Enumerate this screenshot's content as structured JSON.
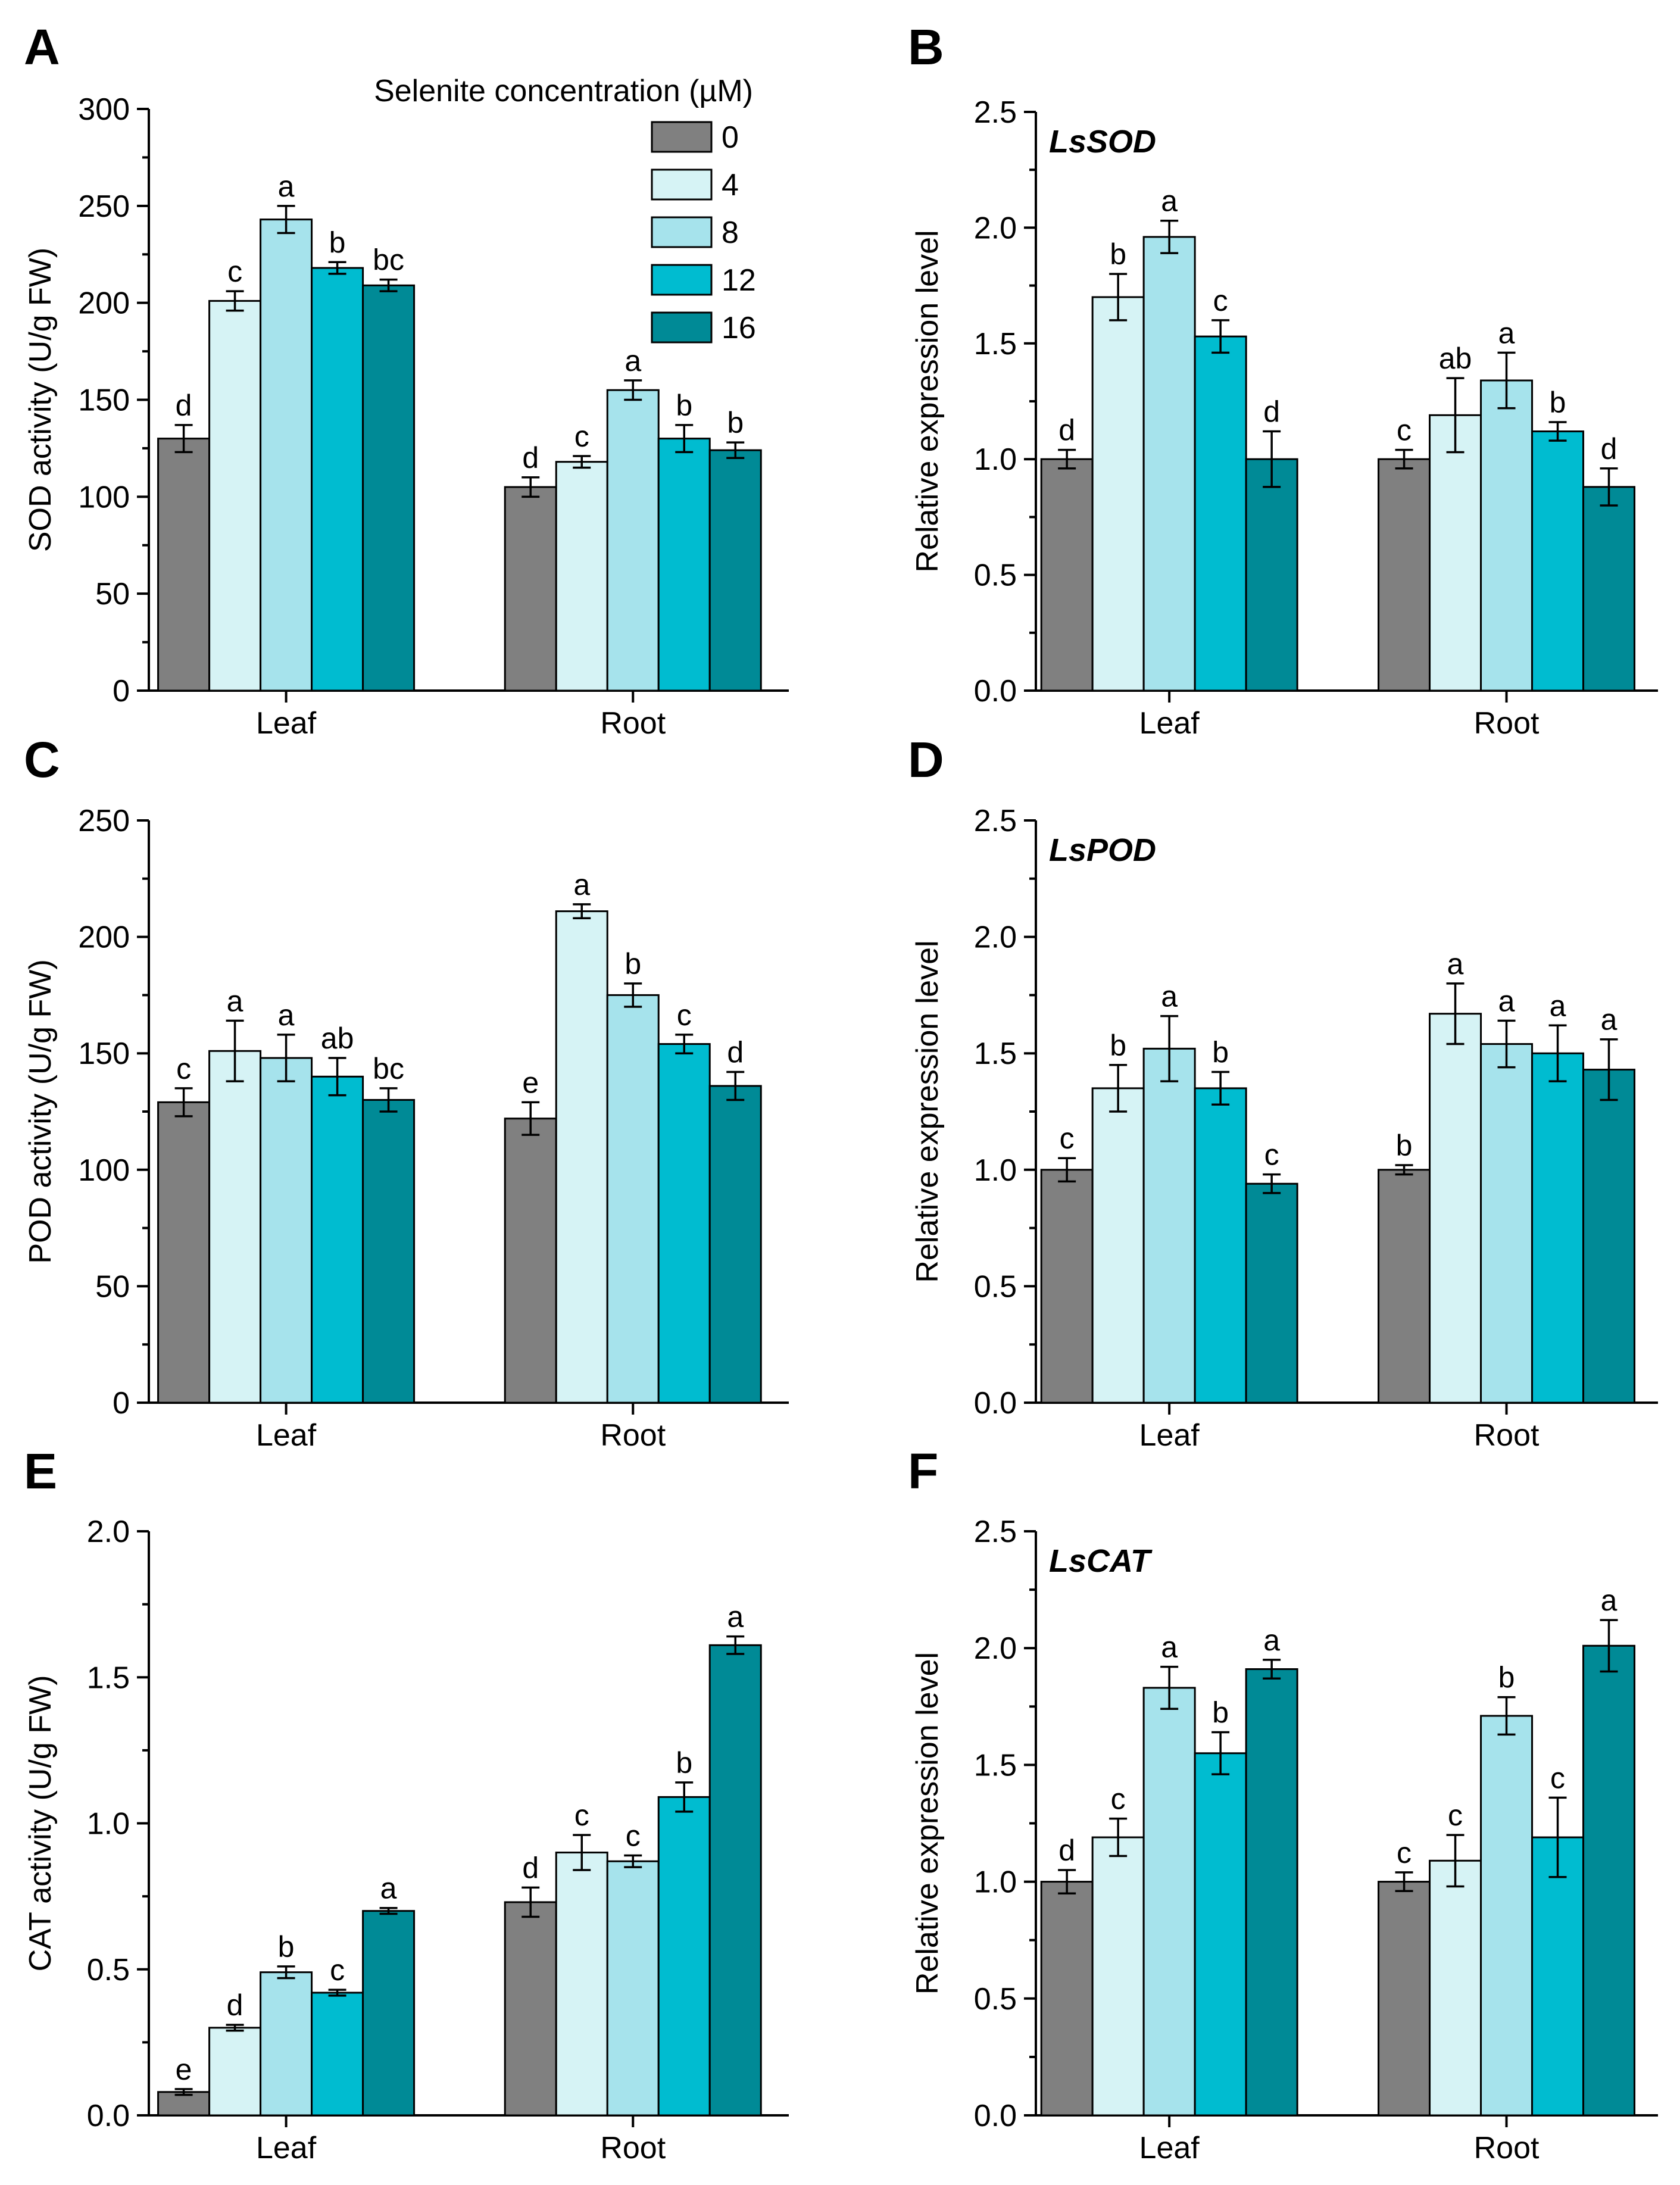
{
  "colors": [
    "#808080",
    "#d6f3f5",
    "#a6e3ec",
    "#00bcd0",
    "#008a96"
  ],
  "legend": {
    "title": "Selenite concentration (µM)",
    "items": [
      "0",
      "4",
      "8",
      "12",
      "16"
    ]
  },
  "chart_data": [
    {
      "panel": "A",
      "type": "bar",
      "ylabel": "SOD activity (U/g FW)",
      "gene": "",
      "categories": [
        "Leaf",
        "Root"
      ],
      "ylim": [
        0,
        300
      ],
      "ytick_step": 50,
      "ytick_decimals": 0,
      "yticks": [
        "0",
        "50",
        "100",
        "150",
        "200",
        "250",
        "300"
      ],
      "series": [
        {
          "name": "0",
          "values": [
            130,
            105
          ],
          "errors": [
            7,
            5
          ],
          "letters": [
            "d",
            "d"
          ]
        },
        {
          "name": "4",
          "values": [
            201,
            118
          ],
          "errors": [
            5,
            3
          ],
          "letters": [
            "c",
            "c"
          ]
        },
        {
          "name": "8",
          "values": [
            243,
            155
          ],
          "errors": [
            7,
            5
          ],
          "letters": [
            "a",
            "a"
          ]
        },
        {
          "name": "12",
          "values": [
            218,
            130
          ],
          "errors": [
            3,
            7
          ],
          "letters": [
            "b",
            "b"
          ]
        },
        {
          "name": "16",
          "values": [
            209,
            124
          ],
          "errors": [
            3,
            4
          ],
          "letters": [
            "bc",
            "b"
          ]
        }
      ]
    },
    {
      "panel": "B",
      "type": "bar",
      "ylabel": "Relative expression level",
      "gene": "LsSOD",
      "categories": [
        "Leaf",
        "Root"
      ],
      "ylim": [
        0,
        2.5
      ],
      "ytick_step": 0.5,
      "ytick_decimals": 1,
      "yticks": [
        "0.0",
        "0.5",
        "1.0",
        "1.5",
        "2.0",
        "2.5"
      ],
      "series": [
        {
          "name": "0",
          "values": [
            1.0,
            1.0
          ],
          "errors": [
            0.04,
            0.04
          ],
          "letters": [
            "d",
            "c"
          ]
        },
        {
          "name": "4",
          "values": [
            1.7,
            1.19
          ],
          "errors": [
            0.1,
            0.16
          ],
          "letters": [
            "b",
            "ab"
          ]
        },
        {
          "name": "8",
          "values": [
            1.96,
            1.34
          ],
          "errors": [
            0.07,
            0.12
          ],
          "letters": [
            "a",
            "a"
          ]
        },
        {
          "name": "12",
          "values": [
            1.53,
            1.12
          ],
          "errors": [
            0.07,
            0.04
          ],
          "letters": [
            "c",
            "b"
          ]
        },
        {
          "name": "16",
          "values": [
            1.0,
            0.88
          ],
          "errors": [
            0.12,
            0.08
          ],
          "letters": [
            "d",
            "d"
          ]
        }
      ]
    },
    {
      "panel": "C",
      "type": "bar",
      "ylabel": "POD activity (U/g FW)",
      "gene": "",
      "categories": [
        "Leaf",
        "Root"
      ],
      "ylim": [
        0,
        250
      ],
      "ytick_step": 50,
      "ytick_decimals": 0,
      "yticks": [
        "0",
        "50",
        "100",
        "150",
        "200",
        "250"
      ],
      "series": [
        {
          "name": "0",
          "values": [
            129,
            122
          ],
          "errors": [
            6,
            7
          ],
          "letters": [
            "c",
            "e"
          ]
        },
        {
          "name": "4",
          "values": [
            151,
            211
          ],
          "errors": [
            13,
            3
          ],
          "letters": [
            "a",
            "a"
          ]
        },
        {
          "name": "8",
          "values": [
            148,
            175
          ],
          "errors": [
            10,
            5
          ],
          "letters": [
            "a",
            "b"
          ]
        },
        {
          "name": "12",
          "values": [
            140,
            154
          ],
          "errors": [
            8,
            4
          ],
          "letters": [
            "ab",
            "c"
          ]
        },
        {
          "name": "16",
          "values": [
            130,
            136
          ],
          "errors": [
            5,
            6
          ],
          "letters": [
            "bc",
            "d"
          ]
        }
      ]
    },
    {
      "panel": "D",
      "type": "bar",
      "ylabel": "Relative expression level",
      "gene": "LsPOD",
      "categories": [
        "Leaf",
        "Root"
      ],
      "ylim": [
        0,
        2.5
      ],
      "ytick_step": 0.5,
      "ytick_decimals": 1,
      "yticks": [
        "0.0",
        "0.5",
        "1.0",
        "1.5",
        "2.0",
        "2.5"
      ],
      "series": [
        {
          "name": "0",
          "values": [
            1.0,
            1.0
          ],
          "errors": [
            0.05,
            0.02
          ],
          "letters": [
            "c",
            "b"
          ]
        },
        {
          "name": "4",
          "values": [
            1.35,
            1.67
          ],
          "errors": [
            0.1,
            0.13
          ],
          "letters": [
            "b",
            "a"
          ]
        },
        {
          "name": "8",
          "values": [
            1.52,
            1.54
          ],
          "errors": [
            0.14,
            0.1
          ],
          "letters": [
            "a",
            "a"
          ]
        },
        {
          "name": "12",
          "values": [
            1.35,
            1.5
          ],
          "errors": [
            0.07,
            0.12
          ],
          "letters": [
            "b",
            "a"
          ]
        },
        {
          "name": "16",
          "values": [
            0.94,
            1.43
          ],
          "errors": [
            0.04,
            0.13
          ],
          "letters": [
            "c",
            "a"
          ]
        }
      ]
    },
    {
      "panel": "E",
      "type": "bar",
      "ylabel": "CAT activity (U/g FW)",
      "gene": "",
      "categories": [
        "Leaf",
        "Root"
      ],
      "ylim": [
        0,
        2.0
      ],
      "ytick_step": 0.5,
      "ytick_decimals": 1,
      "yticks": [
        "0.0",
        "0.5",
        "1.0",
        "1.5",
        "2.0"
      ],
      "series": [
        {
          "name": "0",
          "values": [
            0.08,
            0.73
          ],
          "errors": [
            0.01,
            0.05
          ],
          "letters": [
            "e",
            "d"
          ]
        },
        {
          "name": "4",
          "values": [
            0.3,
            0.9
          ],
          "errors": [
            0.01,
            0.06
          ],
          "letters": [
            "d",
            "c"
          ]
        },
        {
          "name": "8",
          "values": [
            0.49,
            0.87
          ],
          "errors": [
            0.02,
            0.02
          ],
          "letters": [
            "b",
            "c"
          ]
        },
        {
          "name": "12",
          "values": [
            0.42,
            1.09
          ],
          "errors": [
            0.01,
            0.05
          ],
          "letters": [
            "c",
            "b"
          ]
        },
        {
          "name": "16",
          "values": [
            0.7,
            1.61
          ],
          "errors": [
            0.01,
            0.03
          ],
          "letters": [
            "a",
            "a"
          ]
        }
      ]
    },
    {
      "panel": "F",
      "type": "bar",
      "ylabel": "Relative expression level",
      "gene": "LsCAT",
      "categories": [
        "Leaf",
        "Root"
      ],
      "ylim": [
        0,
        2.5
      ],
      "ytick_step": 0.5,
      "ytick_decimals": 1,
      "yticks": [
        "0.0",
        "0.5",
        "1.0",
        "1.5",
        "2.0",
        "2.5"
      ],
      "series": [
        {
          "name": "0",
          "values": [
            1.0,
            1.0
          ],
          "errors": [
            0.05,
            0.04
          ],
          "letters": [
            "d",
            "c"
          ]
        },
        {
          "name": "4",
          "values": [
            1.19,
            1.09
          ],
          "errors": [
            0.08,
            0.11
          ],
          "letters": [
            "c",
            "c"
          ]
        },
        {
          "name": "8",
          "values": [
            1.83,
            1.71
          ],
          "errors": [
            0.09,
            0.08
          ],
          "letters": [
            "a",
            "b"
          ]
        },
        {
          "name": "12",
          "values": [
            1.55,
            1.19
          ],
          "errors": [
            0.09,
            0.17
          ],
          "letters": [
            "b",
            "c"
          ]
        },
        {
          "name": "16",
          "values": [
            1.91,
            2.01
          ],
          "errors": [
            0.04,
            0.11
          ],
          "letters": [
            "a",
            "a"
          ]
        }
      ]
    }
  ]
}
